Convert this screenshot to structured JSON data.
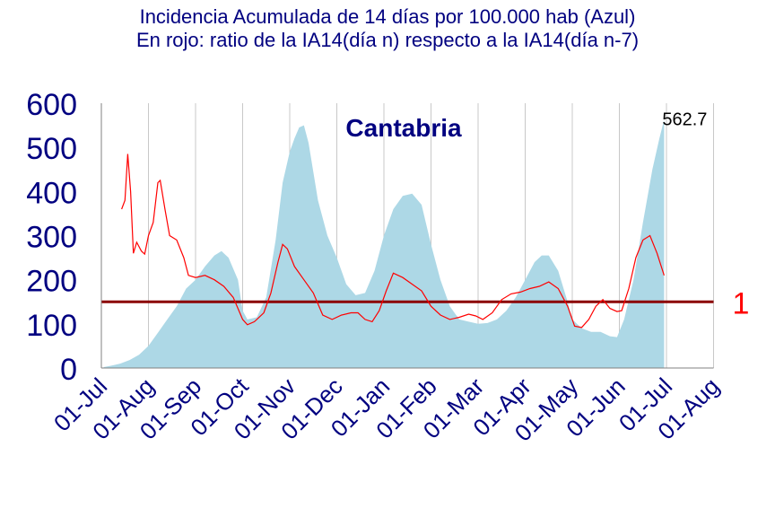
{
  "chart_data": {
    "type": "area",
    "title": "Incidencia Acumulada de 14 días por 100.000 hab (Azul)",
    "subtitle": "En rojo: ratio de la IA14(día n) respecto a la IA14(día n-7)",
    "region_label": "Cantabria",
    "x_tick_labels": [
      "01-Jul",
      "01-Aug",
      "01-Sep",
      "01-Oct",
      "01-Nov",
      "01-Dec",
      "01-Jan",
      "01-Feb",
      "01-Mar",
      "01-Apr",
      "01-May",
      "01-Jun",
      "01-Jul",
      "01-Aug"
    ],
    "ylim": [
      0,
      600
    ],
    "y_ticks": [
      0,
      100,
      200,
      300,
      400,
      500,
      600
    ],
    "grid": "vertical",
    "last_value_label": "562.7",
    "reference_line": {
      "y": 150,
      "label": "1",
      "color": "#8b0000",
      "label_color": "#ff0000"
    },
    "colors": {
      "area": "#add8e6",
      "ratio_line": "#ff0000",
      "axis_text": "#000080",
      "grid": "#c8c8c8"
    },
    "series": [
      {
        "type": "area",
        "points": [
          [
            0.05,
            2
          ],
          [
            0.2,
            5
          ],
          [
            0.4,
            10
          ],
          [
            0.6,
            18
          ],
          [
            0.8,
            30
          ],
          [
            1.0,
            50
          ],
          [
            1.2,
            80
          ],
          [
            1.4,
            110
          ],
          [
            1.6,
            140
          ],
          [
            1.8,
            180
          ],
          [
            2.0,
            200
          ],
          [
            2.2,
            230
          ],
          [
            2.4,
            255
          ],
          [
            2.55,
            265
          ],
          [
            2.7,
            250
          ],
          [
            2.9,
            200
          ],
          [
            3.0,
            130
          ],
          [
            3.1,
            110
          ],
          [
            3.3,
            115
          ],
          [
            3.5,
            160
          ],
          [
            3.7,
            290
          ],
          [
            3.85,
            420
          ],
          [
            4.0,
            490
          ],
          [
            4.1,
            520
          ],
          [
            4.2,
            545
          ],
          [
            4.3,
            550
          ],
          [
            4.4,
            510
          ],
          [
            4.6,
            380
          ],
          [
            4.8,
            300
          ],
          [
            5.0,
            250
          ],
          [
            5.2,
            190
          ],
          [
            5.4,
            165
          ],
          [
            5.6,
            170
          ],
          [
            5.8,
            220
          ],
          [
            6.0,
            300
          ],
          [
            6.2,
            360
          ],
          [
            6.4,
            390
          ],
          [
            6.6,
            395
          ],
          [
            6.8,
            370
          ],
          [
            7.0,
            280
          ],
          [
            7.2,
            200
          ],
          [
            7.4,
            140
          ],
          [
            7.6,
            110
          ],
          [
            7.8,
            105
          ],
          [
            8.0,
            100
          ],
          [
            8.2,
            102
          ],
          [
            8.4,
            110
          ],
          [
            8.6,
            130
          ],
          [
            8.8,
            160
          ],
          [
            9.0,
            200
          ],
          [
            9.2,
            240
          ],
          [
            9.35,
            255
          ],
          [
            9.5,
            255
          ],
          [
            9.7,
            220
          ],
          [
            9.9,
            150
          ],
          [
            10.0,
            110
          ],
          [
            10.2,
            90
          ],
          [
            10.4,
            82
          ],
          [
            10.6,
            82
          ],
          [
            10.8,
            72
          ],
          [
            10.95,
            70
          ],
          [
            11.1,
            110
          ],
          [
            11.3,
            200
          ],
          [
            11.5,
            330
          ],
          [
            11.7,
            450
          ],
          [
            11.85,
            520
          ],
          [
            11.95,
            562.7
          ]
        ]
      },
      {
        "type": "line",
        "points": [
          [
            0.43,
            360
          ],
          [
            0.5,
            380
          ],
          [
            0.56,
            485
          ],
          [
            0.62,
            400
          ],
          [
            0.68,
            260
          ],
          [
            0.75,
            285
          ],
          [
            0.85,
            265
          ],
          [
            0.92,
            258
          ],
          [
            1.0,
            300
          ],
          [
            1.1,
            330
          ],
          [
            1.2,
            420
          ],
          [
            1.25,
            425
          ],
          [
            1.35,
            360
          ],
          [
            1.45,
            300
          ],
          [
            1.6,
            290
          ],
          [
            1.75,
            250
          ],
          [
            1.85,
            210
          ],
          [
            2.0,
            205
          ],
          [
            2.2,
            210
          ],
          [
            2.4,
            200
          ],
          [
            2.6,
            185
          ],
          [
            2.8,
            160
          ],
          [
            3.0,
            110
          ],
          [
            3.1,
            98
          ],
          [
            3.25,
            105
          ],
          [
            3.45,
            125
          ],
          [
            3.6,
            170
          ],
          [
            3.75,
            240
          ],
          [
            3.85,
            280
          ],
          [
            3.95,
            270
          ],
          [
            4.1,
            230
          ],
          [
            4.3,
            200
          ],
          [
            4.5,
            170
          ],
          [
            4.7,
            120
          ],
          [
            4.9,
            110
          ],
          [
            5.1,
            120
          ],
          [
            5.3,
            125
          ],
          [
            5.45,
            125
          ],
          [
            5.6,
            110
          ],
          [
            5.75,
            105
          ],
          [
            5.9,
            130
          ],
          [
            6.05,
            175
          ],
          [
            6.2,
            215
          ],
          [
            6.4,
            205
          ],
          [
            6.6,
            190
          ],
          [
            6.8,
            175
          ],
          [
            7.0,
            140
          ],
          [
            7.2,
            120
          ],
          [
            7.4,
            110
          ],
          [
            7.6,
            115
          ],
          [
            7.8,
            122
          ],
          [
            7.95,
            118
          ],
          [
            8.1,
            110
          ],
          [
            8.3,
            125
          ],
          [
            8.5,
            155
          ],
          [
            8.7,
            168
          ],
          [
            8.9,
            172
          ],
          [
            9.1,
            180
          ],
          [
            9.3,
            185
          ],
          [
            9.5,
            195
          ],
          [
            9.7,
            180
          ],
          [
            9.9,
            140
          ],
          [
            10.05,
            95
          ],
          [
            10.2,
            92
          ],
          [
            10.35,
            110
          ],
          [
            10.5,
            140
          ],
          [
            10.65,
            155
          ],
          [
            10.8,
            135
          ],
          [
            10.95,
            128
          ],
          [
            11.05,
            130
          ],
          [
            11.2,
            180
          ],
          [
            11.35,
            250
          ],
          [
            11.5,
            290
          ],
          [
            11.65,
            300
          ],
          [
            11.8,
            260
          ],
          [
            11.95,
            210
          ]
        ]
      }
    ]
  }
}
